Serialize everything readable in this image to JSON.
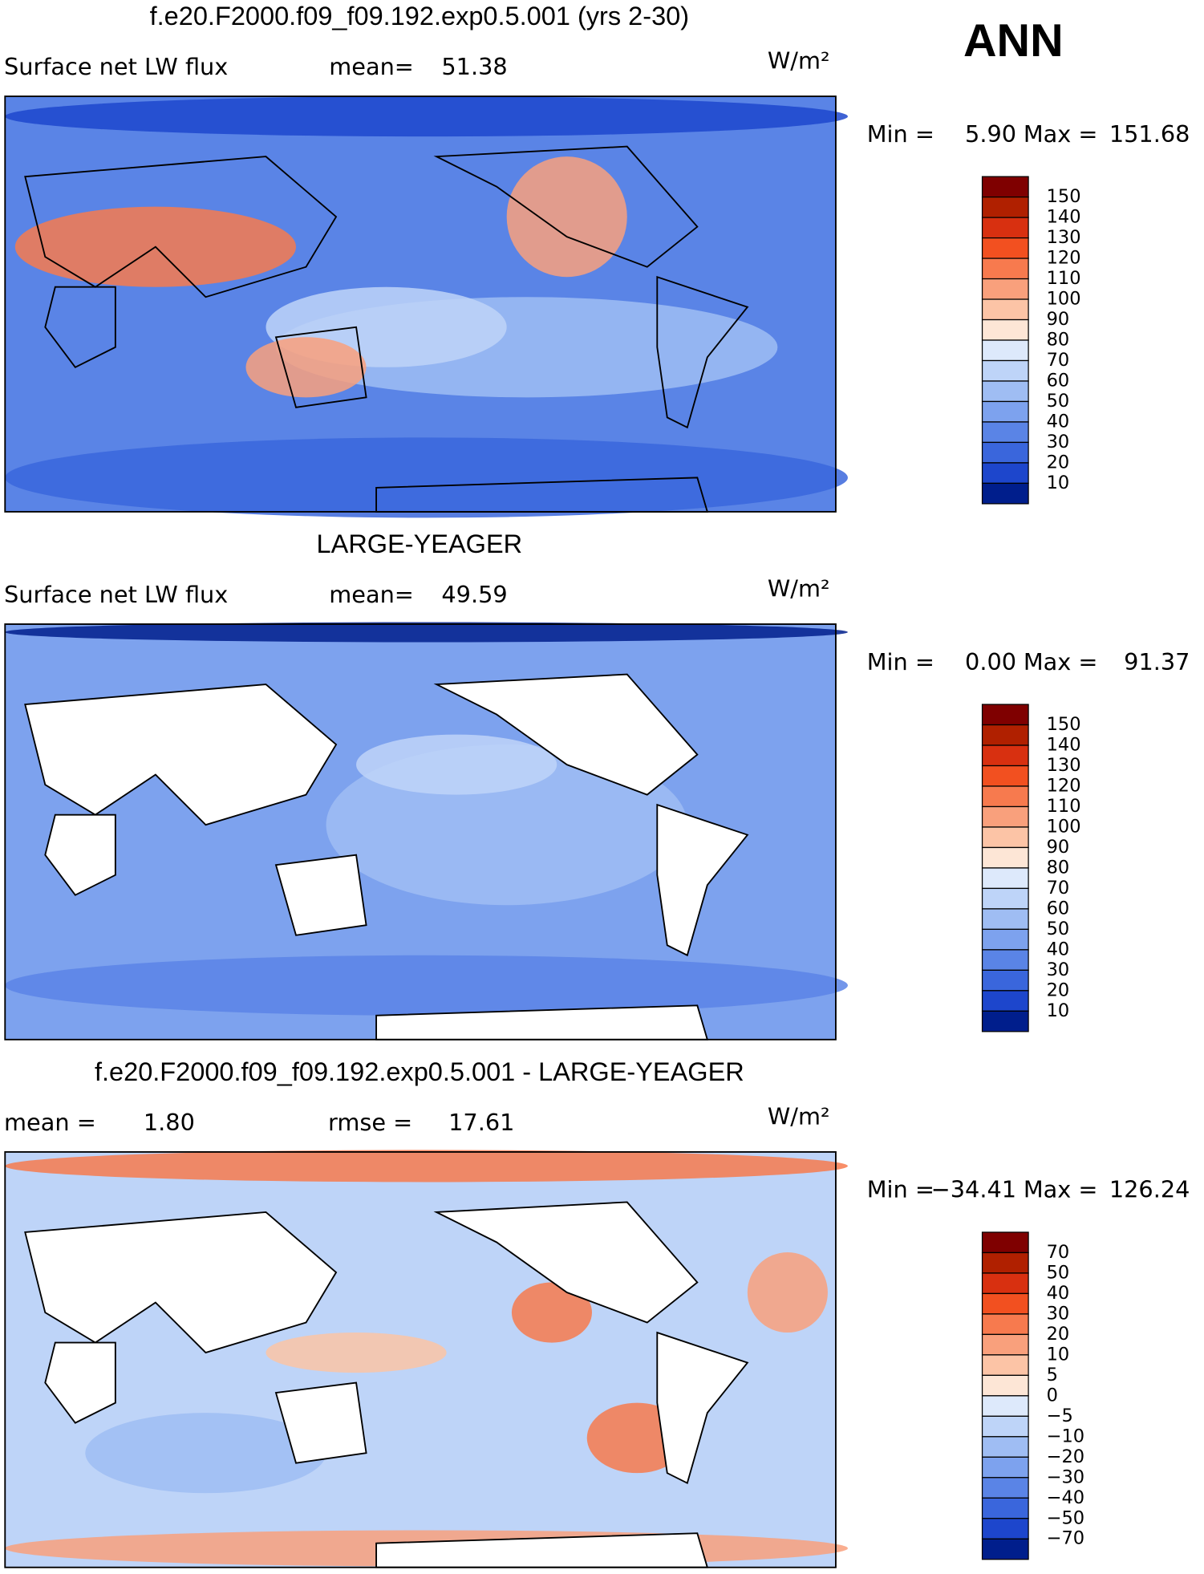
{
  "season": "ANN",
  "panels": [
    {
      "title": "f.e20.F2000.f09_f09.192.exp0.5.001 (yrs 2-30)",
      "variable": "Surface net LW flux",
      "stats": [
        {
          "label": "mean=",
          "value": "51.38"
        }
      ],
      "units": "W/m²",
      "min_label": "Min =",
      "min": "5.90",
      "max_label": "Max =",
      "max": "151.68",
      "levels": [
        "150",
        "140",
        "130",
        "120",
        "110",
        "100",
        "90",
        "80",
        "70",
        "60",
        "50",
        "40",
        "30",
        "20",
        "10"
      ],
      "colors": [
        "#7f0000",
        "#b02000",
        "#d83010",
        "#f25020",
        "#f77a4e",
        "#f9a07c",
        "#fcc4a6",
        "#fde6d6",
        "#dde9fb",
        "#bed4f8",
        "#9fbdf3",
        "#7da2ee",
        "#5a84e6",
        "#3a66dc",
        "#1d46cc",
        "#001e8c"
      ]
    },
    {
      "title": "LARGE-YEAGER",
      "variable": "Surface net LW flux",
      "stats": [
        {
          "label": "mean=",
          "value": "49.59"
        }
      ],
      "units": "W/m²",
      "min_label": "Min =",
      "min": "0.00",
      "max_label": "Max =",
      "max": "91.37",
      "levels": [
        "150",
        "140",
        "130",
        "120",
        "110",
        "100",
        "90",
        "80",
        "70",
        "60",
        "50",
        "40",
        "30",
        "20",
        "10"
      ],
      "colors": [
        "#7f0000",
        "#b02000",
        "#d83010",
        "#f25020",
        "#f77a4e",
        "#f9a07c",
        "#fcc4a6",
        "#fde6d6",
        "#dde9fb",
        "#bed4f8",
        "#9fbdf3",
        "#7da2ee",
        "#5a84e6",
        "#3a66dc",
        "#1d46cc",
        "#001e8c"
      ]
    },
    {
      "title": "f.e20.F2000.f09_f09.192.exp0.5.001 - LARGE-YEAGER",
      "stats": [
        {
          "label": "mean =",
          "value": "1.80"
        },
        {
          "label": "rmse =",
          "value": "17.61"
        }
      ],
      "units": "W/m²",
      "min_label": "Min =",
      "min": "−34.41",
      "max_label": "Max =",
      "max": "126.24",
      "levels": [
        "70",
        "50",
        "40",
        "30",
        "20",
        "10",
        "5",
        "0",
        "−5",
        "−10",
        "−20",
        "−30",
        "−40",
        "−50",
        "−70"
      ],
      "colors": [
        "#7f0000",
        "#b02000",
        "#d83010",
        "#f25020",
        "#f77a4e",
        "#f9a07c",
        "#fcc4a6",
        "#fde6d6",
        "#dde9fb",
        "#bed4f8",
        "#9fbdf3",
        "#7da2ee",
        "#5a84e6",
        "#3a66dc",
        "#1d46cc",
        "#001e8c"
      ]
    }
  ]
}
